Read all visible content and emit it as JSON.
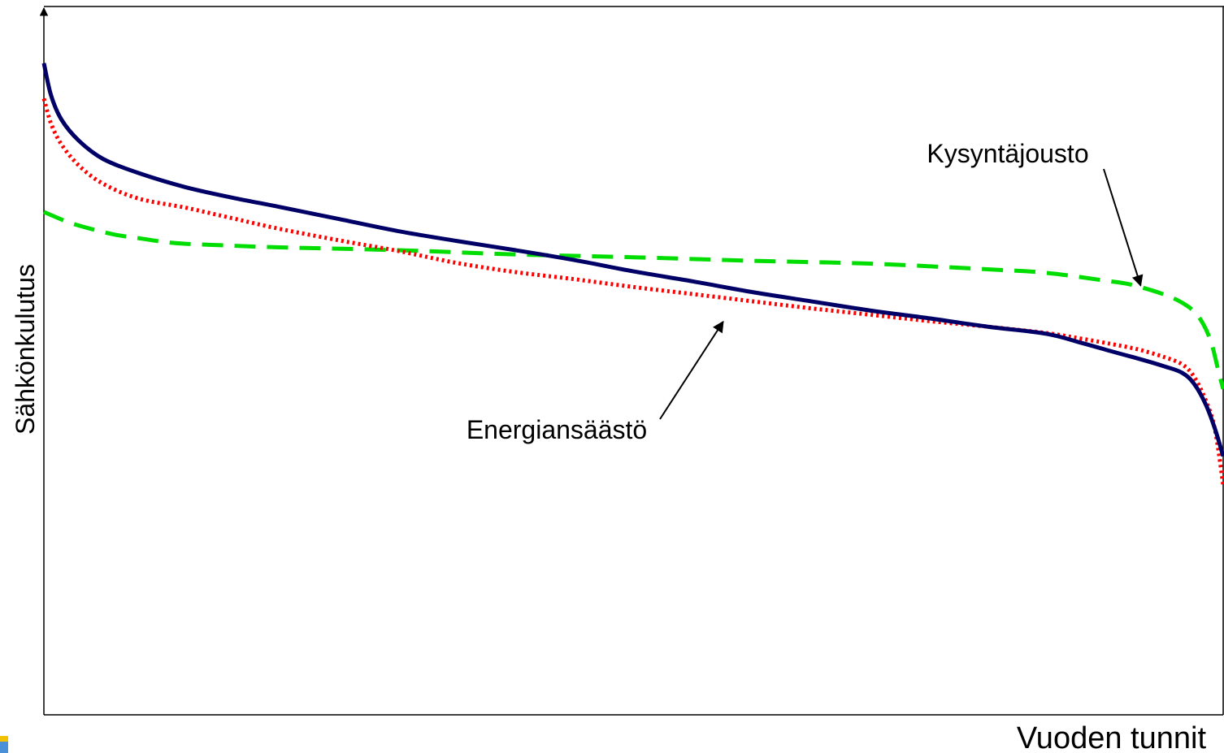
{
  "chart_data": {
    "type": "line",
    "title": "",
    "xlabel": "Vuoden tunnit",
    "ylabel": "Sähkönkulutus",
    "xlim": [
      0,
      100
    ],
    "ylim": [
      0,
      100
    ],
    "grid": false,
    "legend": "none",
    "series": [
      {
        "key": "baseline",
        "style": "solid",
        "color": "#000066",
        "x": [
          0,
          0.6,
          1.5,
          3,
          5,
          8,
          12,
          16,
          20,
          25,
          30,
          35,
          40,
          45,
          50,
          55,
          60,
          65,
          70,
          75,
          80,
          85,
          88,
          91,
          93,
          95,
          96.5,
          97.5,
          98.5,
          99.3,
          100
        ],
        "y": [
          92,
          87.5,
          84,
          81,
          78.5,
          76.5,
          74.5,
          73,
          71.7,
          70,
          68.3,
          66.9,
          65.6,
          64.2,
          62.6,
          61.2,
          59.7,
          58.4,
          57.1,
          56,
          54.8,
          53.8,
          52.5,
          51.1,
          50.2,
          49.2,
          48.3,
          46.8,
          43.9,
          40.4,
          36.5
        ]
      },
      {
        "key": "energiansaasto",
        "style": "dotted",
        "color": "#ff0000",
        "x": [
          0,
          0.6,
          1.5,
          3,
          5,
          8,
          12,
          16,
          20,
          25,
          30,
          35,
          40,
          45,
          50,
          55,
          60,
          65,
          70,
          75,
          80,
          85,
          88,
          91,
          93,
          95,
          96.5,
          97.5,
          98.5,
          99.3,
          100
        ],
        "y": [
          87,
          83.5,
          80.5,
          77.5,
          75,
          72.9,
          71.6,
          70.1,
          68.6,
          67,
          65.5,
          63.8,
          62.5,
          61.5,
          60.4,
          59.4,
          58.4,
          57.4,
          56.5,
          55.6,
          54.8,
          53.9,
          53.1,
          52.2,
          51.5,
          50.5,
          49.5,
          47.8,
          44.5,
          40.3,
          32.5
        ]
      },
      {
        "key": "kysyntajousto",
        "style": "dashed",
        "color": "#00dd00",
        "x": [
          0,
          2,
          4,
          6,
          8,
          10,
          12,
          15,
          20,
          30,
          40,
          50,
          60,
          70,
          80,
          85,
          90,
          92,
          94,
          95.5,
          96.5,
          97.5,
          98.3,
          99,
          99.6,
          100
        ],
        "y": [
          71,
          69.6,
          68.6,
          67.8,
          67.3,
          66.8,
          66.5,
          66.3,
          66.0,
          65.6,
          65.0,
          64.6,
          64.1,
          63.7,
          62.9,
          62.4,
          61.3,
          60.8,
          59.9,
          59.0,
          58.2,
          57.0,
          55.2,
          52.5,
          48.5,
          46.0
        ]
      }
    ],
    "annotations": [
      {
        "key": "kysyntajousto",
        "text": "Kysyntäjousto",
        "pointTo": [
          93,
          60.6
        ]
      },
      {
        "key": "energiansaasto",
        "text": "Energiansäästö",
        "pointTo": [
          57.6,
          55.5
        ]
      }
    ]
  }
}
